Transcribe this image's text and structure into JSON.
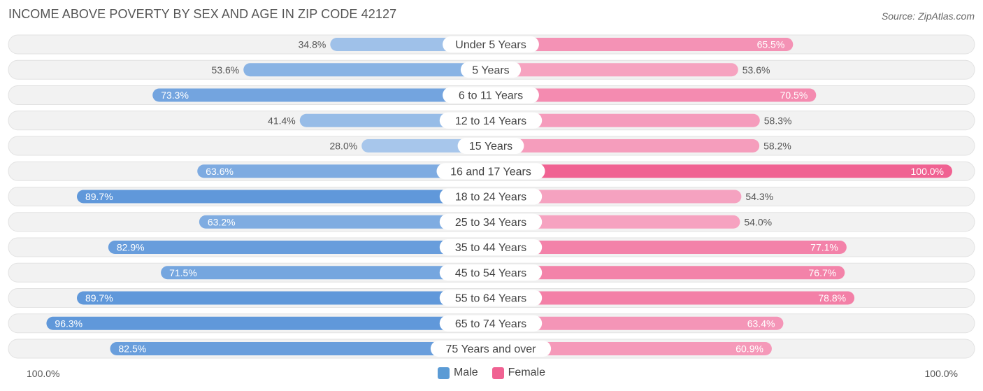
{
  "header": {
    "title": "INCOME ABOVE POVERTY BY SEX AND AGE IN ZIP CODE 42127",
    "source": "Source: ZipAtlas.com"
  },
  "axis": {
    "left_label": "100.0%",
    "right_label": "100.0%"
  },
  "legend": {
    "male_label": "Male",
    "female_label": "Female",
    "male_color": "#5b9bd5",
    "female_color": "#f06292"
  },
  "chart_data": {
    "type": "bar",
    "orientation": "horizontal-diverging",
    "title": "INCOME ABOVE POVERTY BY SEX AND AGE IN ZIP CODE 42127",
    "categories": [
      "Under 5 Years",
      "5 Years",
      "6 to 11 Years",
      "12 to 14 Years",
      "15 Years",
      "16 and 17 Years",
      "18 to 24 Years",
      "25 to 34 Years",
      "35 to 44 Years",
      "45 to 54 Years",
      "55 to 64 Years",
      "65 to 74 Years",
      "75 Years and over"
    ],
    "series": [
      {
        "name": "Male",
        "values": [
          34.8,
          53.6,
          73.3,
          41.4,
          28.0,
          63.6,
          89.7,
          63.2,
          82.9,
          71.5,
          89.7,
          96.3,
          82.5
        ]
      },
      {
        "name": "Female",
        "values": [
          65.5,
          53.6,
          70.5,
          58.3,
          58.2,
          100.0,
          54.3,
          54.0,
          77.1,
          76.7,
          78.8,
          63.4,
          60.9
        ]
      }
    ],
    "xlim": [
      0,
      100
    ],
    "unit": "%"
  }
}
